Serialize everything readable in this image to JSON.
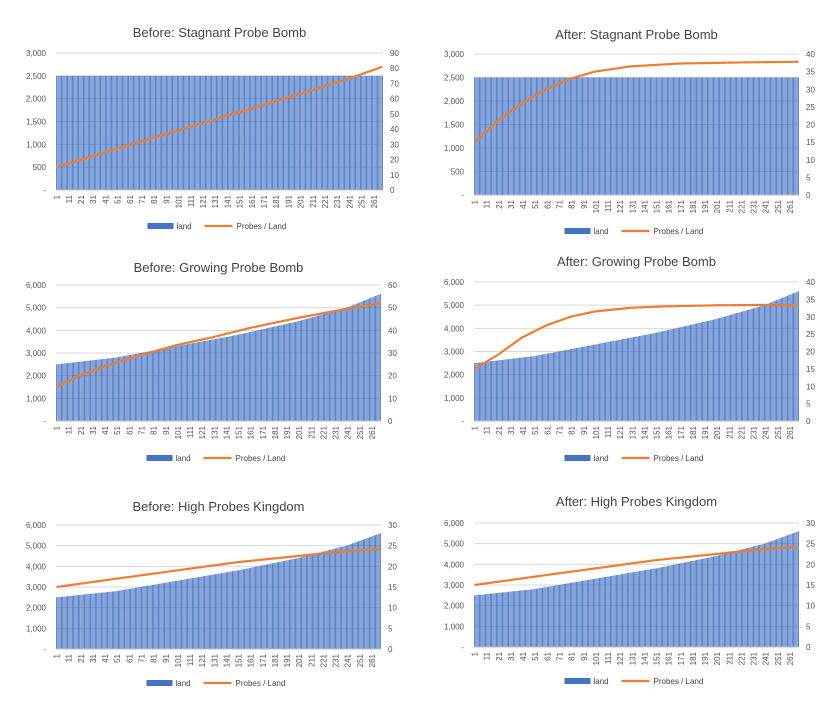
{
  "colors": {
    "bars": "#4472C4",
    "line": "#ED7D31",
    "grid": "#d9d9d9",
    "text": "#444444"
  },
  "legend": {
    "bar_label": "land",
    "line_label": "Probes / Land"
  },
  "x_tick_labels": [
    "1",
    "11",
    "21",
    "31",
    "41",
    "51",
    "61",
    "71",
    "81",
    "91",
    "101",
    "111",
    "121",
    "131",
    "141",
    "151",
    "161",
    "171",
    "181",
    "191",
    "201",
    "211",
    "221",
    "231",
    "241",
    "251",
    "261"
  ],
  "chart_data": [
    {
      "type": "bar",
      "title": "Before: Stagnant Probe Bomb",
      "x": {
        "start": 1,
        "end": 268
      },
      "y_left": {
        "min": 0,
        "max": 3000,
        "ticks": [
          "-",
          "500",
          "1,000",
          "1,500",
          "2,000",
          "2,500",
          "3,000"
        ]
      },
      "y_right": {
        "min": 0,
        "max": 90,
        "ticks": [
          "0",
          "10",
          "20",
          "30",
          "40",
          "50",
          "60",
          "70",
          "80",
          "90"
        ]
      },
      "series": [
        {
          "name": "land",
          "type": "bar",
          "points": [
            [
              1,
              2500
            ],
            [
              268,
              2500
            ]
          ]
        },
        {
          "name": "Probes / Land",
          "type": "line",
          "axis": "right",
          "points": [
            [
              1,
              15
            ],
            [
              50,
              27
            ],
            [
              100,
              39
            ],
            [
              150,
              51
            ],
            [
              200,
              63
            ],
            [
              240,
              73
            ],
            [
              268,
              81
            ]
          ]
        }
      ]
    },
    {
      "type": "bar",
      "title": "After: Stagnant Probe Bomb",
      "x": {
        "start": 1,
        "end": 268
      },
      "y_left": {
        "min": 0,
        "max": 3000,
        "ticks": [
          "-",
          "500",
          "1,000",
          "1,500",
          "2,000",
          "2,500",
          "3,000"
        ]
      },
      "y_right": {
        "min": 0,
        "max": 40,
        "ticks": [
          "0",
          "5",
          "10",
          "15",
          "20",
          "25",
          "30",
          "35",
          "40"
        ]
      },
      "series": [
        {
          "name": "land",
          "type": "bar",
          "points": [
            [
              1,
              2500
            ],
            [
              268,
              2500
            ]
          ]
        },
        {
          "name": "Probes / Land",
          "type": "line",
          "axis": "right",
          "points": [
            [
              1,
              15
            ],
            [
              20,
              21
            ],
            [
              40,
              26
            ],
            [
              60,
              30
            ],
            [
              80,
              33
            ],
            [
              100,
              35
            ],
            [
              130,
              36.5
            ],
            [
              170,
              37.3
            ],
            [
              220,
              37.6
            ],
            [
              268,
              37.8
            ]
          ]
        }
      ]
    },
    {
      "type": "bar",
      "title": "Before: Growing Probe Bomb",
      "x": {
        "start": 1,
        "end": 268
      },
      "y_left": {
        "min": 0,
        "max": 6000,
        "ticks": [
          "-",
          "1,000",
          "2,000",
          "3,000",
          "4,000",
          "5,000",
          "6,000"
        ]
      },
      "y_right": {
        "min": 0,
        "max": 60,
        "ticks": [
          "0",
          "10",
          "20",
          "30",
          "40",
          "50",
          "60"
        ]
      },
      "series": [
        {
          "name": "land",
          "type": "bar",
          "points": [
            [
              1,
              2500
            ],
            [
              50,
              2800
            ],
            [
              100,
              3300
            ],
            [
              150,
              3800
            ],
            [
              200,
              4400
            ],
            [
              240,
              5000
            ],
            [
              268,
              5600
            ]
          ]
        },
        {
          "name": "Probes / Land",
          "type": "line",
          "axis": "right",
          "points": [
            [
              1,
              15
            ],
            [
              20,
              20
            ],
            [
              40,
              24
            ],
            [
              60,
              27.5
            ],
            [
              80,
              30.5
            ],
            [
              100,
              33.5
            ],
            [
              130,
              37
            ],
            [
              160,
              41
            ],
            [
              200,
              45.5
            ],
            [
              240,
              49.5
            ],
            [
              268,
              52
            ]
          ]
        }
      ]
    },
    {
      "type": "bar",
      "title": "After: Growing Probe Bomb",
      "x": {
        "start": 1,
        "end": 268
      },
      "y_left": {
        "min": 0,
        "max": 6000,
        "ticks": [
          "-",
          "1,000",
          "2,000",
          "3,000",
          "4,000",
          "5,000",
          "6,000"
        ]
      },
      "y_right": {
        "min": 0,
        "max": 40,
        "ticks": [
          "0",
          "5",
          "10",
          "15",
          "20",
          "25",
          "30",
          "35",
          "40"
        ]
      },
      "series": [
        {
          "name": "land",
          "type": "bar",
          "points": [
            [
              1,
              2500
            ],
            [
              50,
              2800
            ],
            [
              100,
              3300
            ],
            [
              150,
              3800
            ],
            [
              200,
              4400
            ],
            [
              240,
              5000
            ],
            [
              268,
              5600
            ]
          ]
        },
        {
          "name": "Probes / Land",
          "type": "line",
          "axis": "right",
          "points": [
            [
              1,
              15
            ],
            [
              20,
              19
            ],
            [
              40,
              24
            ],
            [
              60,
              27.5
            ],
            [
              80,
              30
            ],
            [
              100,
              31.5
            ],
            [
              130,
              32.6
            ],
            [
              160,
              33
            ],
            [
              200,
              33.3
            ],
            [
              240,
              33.4
            ],
            [
              268,
              33.3
            ]
          ]
        }
      ]
    },
    {
      "type": "bar",
      "title": "Before: High Probes Kingdom",
      "x": {
        "start": 1,
        "end": 268
      },
      "y_left": {
        "min": 0,
        "max": 6000,
        "ticks": [
          "-",
          "1,000",
          "2,000",
          "3,000",
          "4,000",
          "5,000",
          "6,000"
        ]
      },
      "y_right": {
        "min": 0,
        "max": 30,
        "ticks": [
          "0",
          "5",
          "10",
          "15",
          "20",
          "25",
          "30"
        ]
      },
      "series": [
        {
          "name": "land",
          "type": "bar",
          "points": [
            [
              1,
              2500
            ],
            [
              50,
              2800
            ],
            [
              100,
              3300
            ],
            [
              150,
              3800
            ],
            [
              200,
              4400
            ],
            [
              240,
              5000
            ],
            [
              268,
              5600
            ]
          ]
        },
        {
          "name": "Probes / Land",
          "type": "line",
          "axis": "right",
          "points": [
            [
              1,
              15
            ],
            [
              50,
              17
            ],
            [
              100,
              19
            ],
            [
              150,
              21
            ],
            [
              200,
              22.5
            ],
            [
              240,
              23.7
            ],
            [
              268,
              24.2
            ]
          ]
        }
      ]
    },
    {
      "type": "bar",
      "title": "After: High Probes Kingdom",
      "x": {
        "start": 1,
        "end": 268
      },
      "y_left": {
        "min": 0,
        "max": 6000,
        "ticks": [
          "-",
          "1,000",
          "2,000",
          "3,000",
          "4,000",
          "5,000",
          "6,000"
        ]
      },
      "y_right": {
        "min": 0,
        "max": 30,
        "ticks": [
          "0",
          "5",
          "10",
          "15",
          "20",
          "25",
          "30"
        ]
      },
      "series": [
        {
          "name": "land",
          "type": "bar",
          "points": [
            [
              1,
              2500
            ],
            [
              50,
              2800
            ],
            [
              100,
              3300
            ],
            [
              150,
              3800
            ],
            [
              200,
              4400
            ],
            [
              240,
              5000
            ],
            [
              268,
              5600
            ]
          ]
        },
        {
          "name": "Probes / Land",
          "type": "line",
          "axis": "right",
          "points": [
            [
              1,
              15
            ],
            [
              50,
              17
            ],
            [
              100,
              19
            ],
            [
              150,
              21
            ],
            [
              200,
              22.5
            ],
            [
              240,
              23.7
            ],
            [
              268,
              24.2
            ]
          ]
        }
      ]
    }
  ]
}
